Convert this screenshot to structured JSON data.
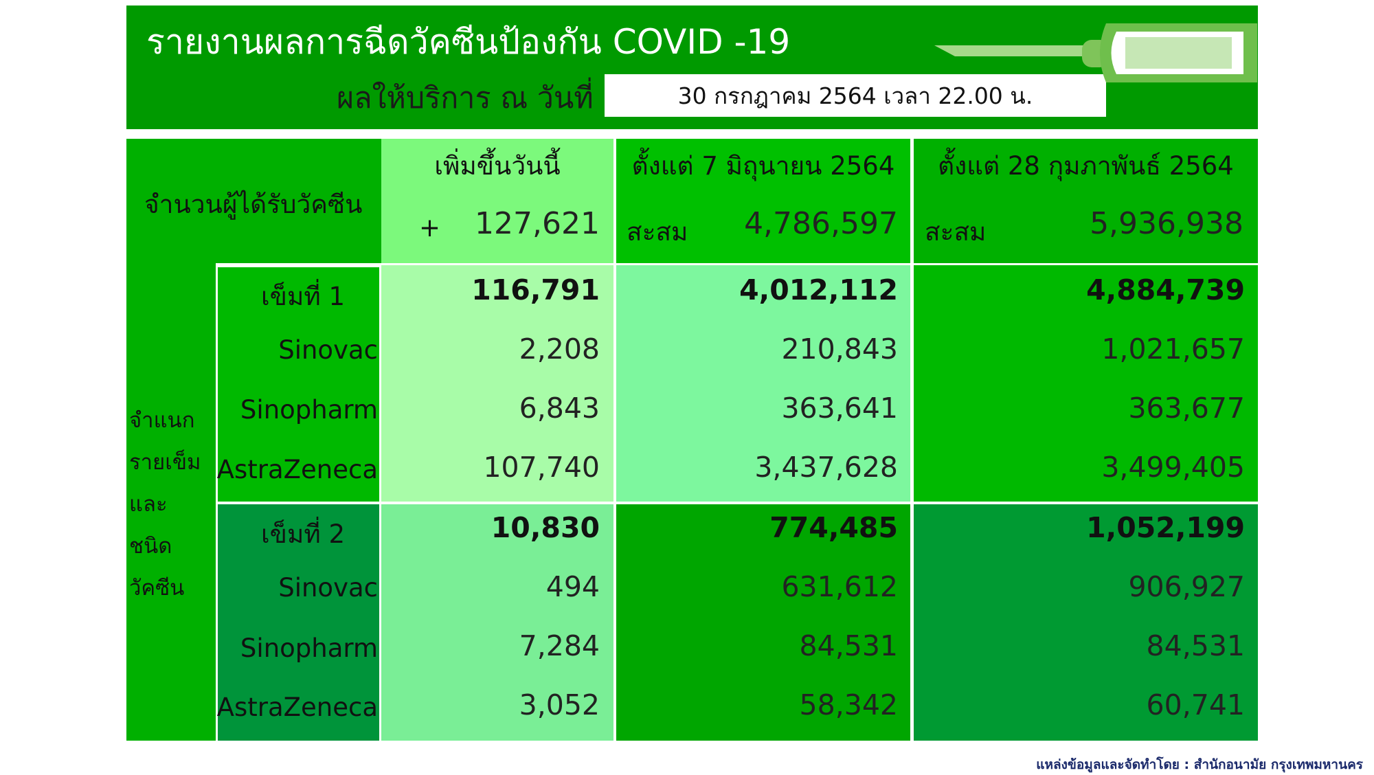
{
  "header": {
    "title": "รายงานผลการฉีดวัคซีนป้องกัน COVID -19",
    "subtitle": "ผลให้บริการ ณ วันที่",
    "date": "30 กรกฎาคม 2564  เวลา 22.00 น."
  },
  "table": {
    "row_label": "จำนวนผู้ได้รับวัคซีน",
    "side_label_lines": [
      "จำแนก",
      "รายเข็ม",
      "และ",
      "ชนิด",
      "วัคซีน"
    ],
    "columns": [
      {
        "title": "เพิ่มขึ้นวันนี้",
        "prefix": "+",
        "total": "127,621"
      },
      {
        "title": "ตั้งแต่ 7 มิถุนายน 2564",
        "prefix": "สะสม",
        "total": "4,786,597"
      },
      {
        "title": "ตั้งแต่ 28 กุมภาพันธ์ 2564",
        "prefix": "สะสม",
        "total": "5,936,938"
      }
    ],
    "dose1": {
      "label": "เข็มที่ 1",
      "totals": [
        "116,791",
        "4,012,112",
        "4,884,739"
      ],
      "vaccines": [
        {
          "name": "Sinovac",
          "values": [
            "2,208",
            "210,843",
            "1,021,657"
          ]
        },
        {
          "name": "Sinopharm",
          "values": [
            "6,843",
            "363,641",
            "363,677"
          ]
        },
        {
          "name": "AstraZeneca",
          "values": [
            "107,740",
            "3,437,628",
            "3,499,405"
          ]
        }
      ]
    },
    "dose2": {
      "label": "เข็มที่ 2",
      "totals": [
        "10,830",
        "774,485",
        "1,052,199"
      ],
      "vaccines": [
        {
          "name": "Sinovac",
          "values": [
            "494",
            "631,612",
            "906,927"
          ]
        },
        {
          "name": "Sinopharm",
          "values": [
            "7,284",
            "84,531",
            "84,531"
          ]
        },
        {
          "name": "AstraZeneca",
          "values": [
            "3,052",
            "58,342",
            "60,741"
          ]
        }
      ]
    }
  },
  "source": "แหล่งข้อมูลและจัดทำโดย : สำนักอนามัย กรุงเทพมหานคร",
  "colors": {
    "header_green": "#009a00",
    "label_green": "#00b000",
    "today_header": "#7cf97c",
    "today_dose1": "#a8fca8",
    "today_dose2": "#7aee96",
    "col2_header": "#00c000",
    "col2_dose1": "#7df79e",
    "col2_dose2": "#00a600",
    "col3_header": "#00b000",
    "col3_dose1": "#00b900",
    "col3_dose2": "#009a32",
    "dose2_label": "#00943a"
  }
}
